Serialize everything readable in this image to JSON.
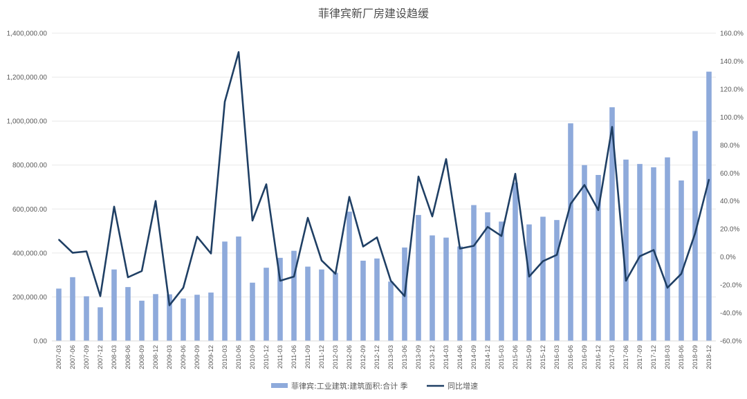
{
  "chart_data": {
    "type": "bar",
    "title": "菲律宾新厂房建设趋缓",
    "categories": [
      "2007-03",
      "2007-06",
      "2007-09",
      "2007-12",
      "2008-03",
      "2008-06",
      "2008-09",
      "2008-12",
      "2009-03",
      "2009-06",
      "2009-09",
      "2009-12",
      "2010-03",
      "2010-06",
      "2010-09",
      "2010-12",
      "2011-03",
      "2011-06",
      "2011-09",
      "2011-12",
      "2012-03",
      "2012-06",
      "2012-09",
      "2012-12",
      "2013-03",
      "2013-06",
      "2013-09",
      "2013-12",
      "2014-03",
      "2014-06",
      "2014-09",
      "2014-12",
      "2015-03",
      "2015-06",
      "2015-09",
      "2015-12",
      "2016-03",
      "2016-06",
      "2016-09",
      "2016-12",
      "2017-03",
      "2017-06",
      "2017-09",
      "2017-12",
      "2018-03",
      "2018-06",
      "2018-09",
      "2018-12"
    ],
    "series": [
      {
        "name": "菲律宾:工业建筑:建筑面积:合计 季",
        "type": "bar",
        "axis": "left",
        "color": "#8eaadb",
        "values": [
          238000,
          290000,
          203000,
          153000,
          325000,
          245000,
          183000,
          213000,
          212000,
          193000,
          210000,
          220000,
          452000,
          475000,
          265000,
          333000,
          378000,
          410000,
          338000,
          325000,
          310000,
          588000,
          365000,
          375000,
          270000,
          425000,
          573000,
          480000,
          470000,
          430000,
          618000,
          585000,
          543000,
          720000,
          530000,
          565000,
          550000,
          990000,
          800000,
          755000,
          1063000,
          825000,
          805000,
          790000,
          835000,
          730000,
          955000,
          1225000
        ]
      },
      {
        "name": "同比增速",
        "type": "line",
        "axis": "right",
        "color": "#1f3f64",
        "values": [
          12.5,
          3.0,
          4.0,
          -28.0,
          36.0,
          -14.5,
          -10.0,
          40.0,
          -34.5,
          -22.0,
          14.5,
          2.5,
          111.0,
          146.5,
          26.0,
          52.0,
          -17.0,
          -14.0,
          28.0,
          -2.5,
          -12.0,
          43.0,
          7.5,
          14.0,
          -17.0,
          -28.0,
          57.5,
          29.0,
          70.0,
          6.0,
          8.0,
          21.5,
          15.0,
          59.5,
          -14.0,
          -3.0,
          1.5,
          38.0,
          51.5,
          33.5,
          93.0,
          -17.0,
          0.5,
          5.0,
          -22.0,
          -12.0,
          17.0,
          55.5
        ]
      }
    ],
    "y_left": {
      "min": 0,
      "max": 1400000,
      "step": 200000,
      "tick_labels": [
        "0.00",
        "200,000.00",
        "400,000.00",
        "600,000.00",
        "800,000.00",
        "1,000,000.00",
        "1,200,000.00",
        "1,400,000.00"
      ]
    },
    "y_right": {
      "min": -60,
      "max": 160,
      "step": 20,
      "tick_labels": [
        "-60.0%",
        "-40.0%",
        "-20.0%",
        "0.0%",
        "20.0%",
        "40.0%",
        "60.0%",
        "80.0%",
        "100.0%",
        "120.0%",
        "140.0%",
        "160.0%"
      ]
    },
    "grid": true,
    "legend_position": "bottom"
  }
}
